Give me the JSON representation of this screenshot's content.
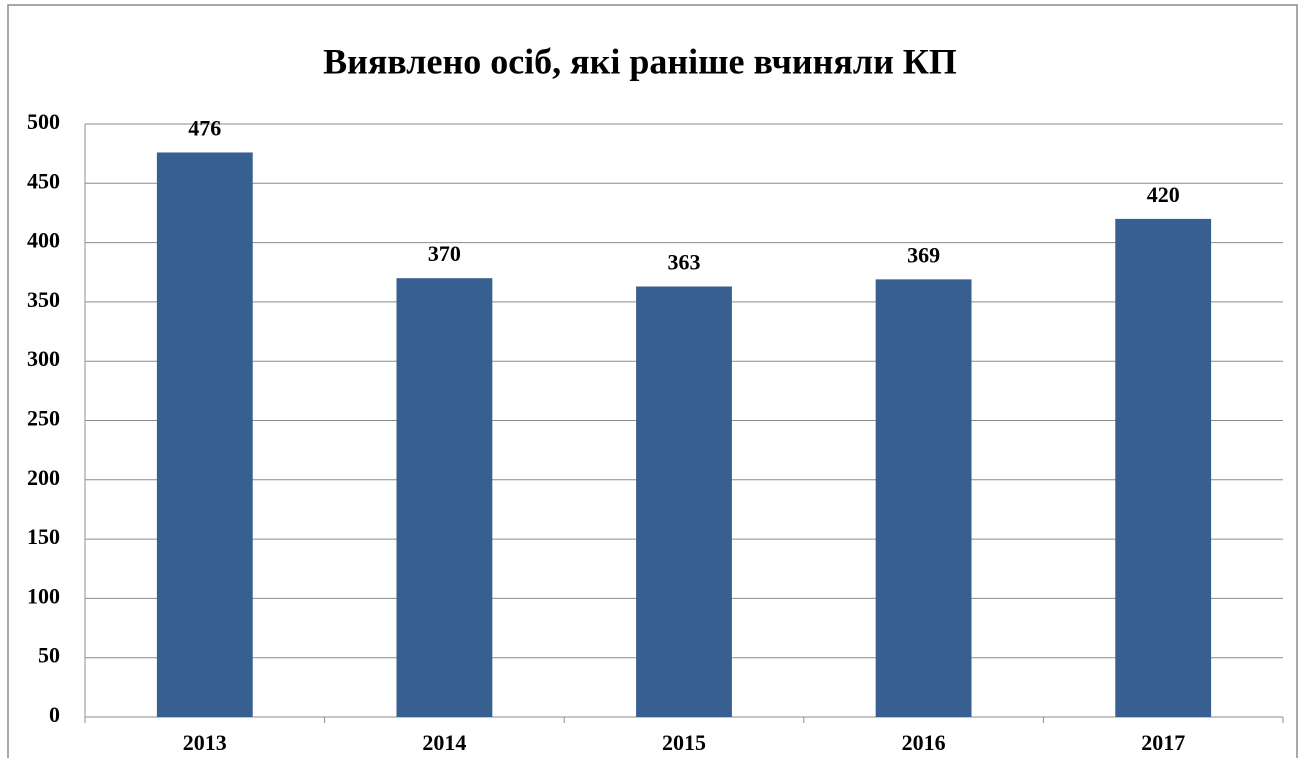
{
  "chart_data": {
    "type": "bar",
    "title": "Виявлено осіб, які раніше вчиняли КП",
    "categories": [
      "2013",
      "2014",
      "2015",
      "2016",
      "2017"
    ],
    "values": [
      476,
      370,
      363,
      369,
      420
    ],
    "color": "#375f8f",
    "ylim": [
      0,
      500
    ],
    "yticks": [
      0,
      50,
      100,
      150,
      200,
      250,
      300,
      350,
      400,
      450,
      500
    ],
    "grid": true
  }
}
